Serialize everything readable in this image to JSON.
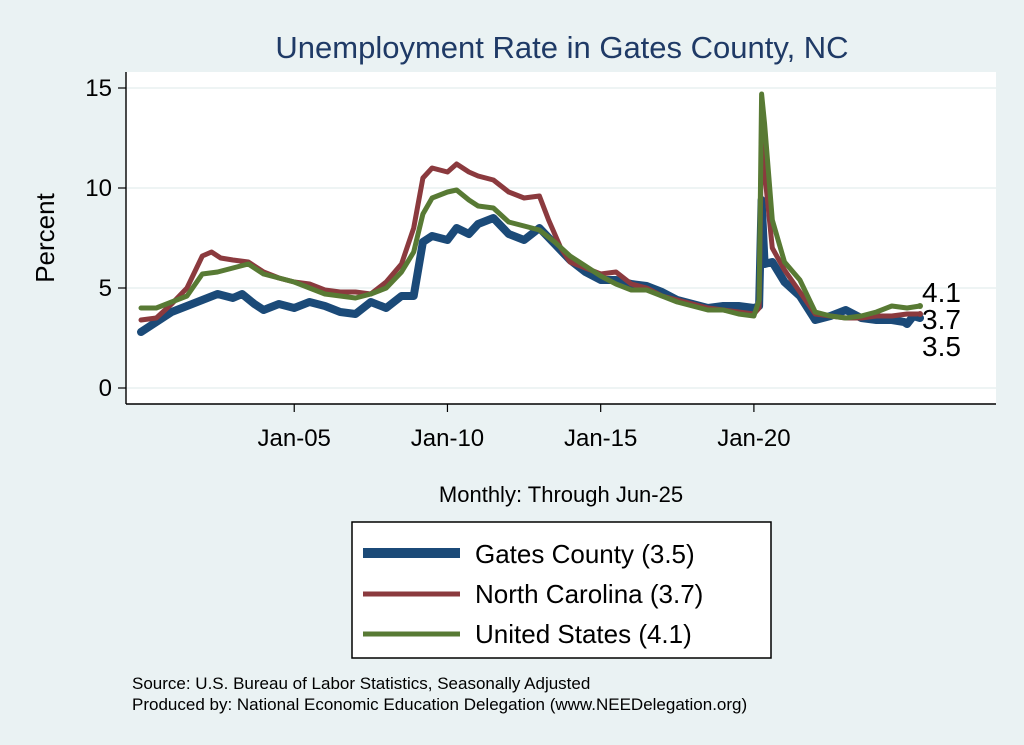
{
  "chart_data": {
    "type": "line",
    "title": "Unemployment Rate in Gates  County, NC",
    "ylabel": "Percent",
    "xlabel": "Monthly: Through Jun-25",
    "ylim": [
      0,
      15
    ],
    "yticks": [
      0,
      5,
      10,
      15
    ],
    "xrange": [
      2000.0,
      2025.42
    ],
    "xticks": [
      {
        "x": 2005.0,
        "label": "Jan-05"
      },
      {
        "x": 2010.0,
        "label": "Jan-10"
      },
      {
        "x": 2015.0,
        "label": "Jan-15"
      },
      {
        "x": 2020.0,
        "label": "Jan-20"
      }
    ],
    "series": [
      {
        "name": "Gates  County",
        "legend_label": "Gates  County (3.5)",
        "end_label": "3.5",
        "color": "#1b4a78",
        "points": [
          [
            2000.0,
            2.8
          ],
          [
            2000.5,
            3.3
          ],
          [
            2001.0,
            3.8
          ],
          [
            2001.5,
            4.1
          ],
          [
            2002.0,
            4.4
          ],
          [
            2002.5,
            4.7
          ],
          [
            2003.0,
            4.5
          ],
          [
            2003.3,
            4.7
          ],
          [
            2003.7,
            4.2
          ],
          [
            2004.0,
            3.9
          ],
          [
            2004.5,
            4.2
          ],
          [
            2005.0,
            4.0
          ],
          [
            2005.5,
            4.3
          ],
          [
            2006.0,
            4.1
          ],
          [
            2006.5,
            3.8
          ],
          [
            2007.0,
            3.7
          ],
          [
            2007.5,
            4.3
          ],
          [
            2008.0,
            4.0
          ],
          [
            2008.5,
            4.6
          ],
          [
            2008.9,
            4.6
          ],
          [
            2009.2,
            7.3
          ],
          [
            2009.5,
            7.6
          ],
          [
            2010.0,
            7.4
          ],
          [
            2010.3,
            8.0
          ],
          [
            2010.7,
            7.7
          ],
          [
            2011.0,
            8.2
          ],
          [
            2011.5,
            8.5
          ],
          [
            2012.0,
            7.7
          ],
          [
            2012.5,
            7.4
          ],
          [
            2013.0,
            8.0
          ],
          [
            2013.5,
            7.2
          ],
          [
            2014.0,
            6.4
          ],
          [
            2014.5,
            5.8
          ],
          [
            2015.0,
            5.4
          ],
          [
            2015.5,
            5.4
          ],
          [
            2016.0,
            5.2
          ],
          [
            2016.5,
            5.1
          ],
          [
            2017.0,
            4.8
          ],
          [
            2017.5,
            4.4
          ],
          [
            2018.0,
            4.2
          ],
          [
            2018.5,
            4.0
          ],
          [
            2019.0,
            4.1
          ],
          [
            2019.5,
            4.1
          ],
          [
            2020.0,
            4.0
          ],
          [
            2020.17,
            4.1
          ],
          [
            2020.25,
            9.4
          ],
          [
            2020.35,
            6.2
          ],
          [
            2020.6,
            6.3
          ],
          [
            2021.0,
            5.3
          ],
          [
            2021.5,
            4.6
          ],
          [
            2022.0,
            3.4
          ],
          [
            2022.5,
            3.6
          ],
          [
            2023.0,
            3.9
          ],
          [
            2023.5,
            3.5
          ],
          [
            2024.0,
            3.4
          ],
          [
            2024.5,
            3.4
          ],
          [
            2024.9,
            3.3
          ],
          [
            2025.0,
            3.2
          ],
          [
            2025.2,
            3.6
          ],
          [
            2025.42,
            3.5
          ]
        ]
      },
      {
        "name": "North Carolina",
        "legend_label": "North Carolina (3.7)",
        "end_label": "3.7",
        "color": "#8b3a3e",
        "points": [
          [
            2000.0,
            3.4
          ],
          [
            2000.5,
            3.5
          ],
          [
            2001.0,
            4.2
          ],
          [
            2001.5,
            5.0
          ],
          [
            2002.0,
            6.6
          ],
          [
            2002.3,
            6.8
          ],
          [
            2002.6,
            6.5
          ],
          [
            2003.0,
            6.4
          ],
          [
            2003.5,
            6.3
          ],
          [
            2004.0,
            5.8
          ],
          [
            2004.5,
            5.5
          ],
          [
            2005.0,
            5.3
          ],
          [
            2005.5,
            5.2
          ],
          [
            2006.0,
            4.9
          ],
          [
            2006.5,
            4.8
          ],
          [
            2007.0,
            4.8
          ],
          [
            2007.5,
            4.7
          ],
          [
            2008.0,
            5.3
          ],
          [
            2008.5,
            6.2
          ],
          [
            2008.9,
            8.0
          ],
          [
            2009.2,
            10.5
          ],
          [
            2009.5,
            11.0
          ],
          [
            2010.0,
            10.8
          ],
          [
            2010.3,
            11.2
          ],
          [
            2010.7,
            10.8
          ],
          [
            2011.0,
            10.6
          ],
          [
            2011.5,
            10.4
          ],
          [
            2012.0,
            9.8
          ],
          [
            2012.5,
            9.5
          ],
          [
            2013.0,
            9.6
          ],
          [
            2013.3,
            8.4
          ],
          [
            2013.7,
            7.0
          ],
          [
            2014.0,
            6.3
          ],
          [
            2014.5,
            6.0
          ],
          [
            2015.0,
            5.7
          ],
          [
            2015.5,
            5.8
          ],
          [
            2016.0,
            5.2
          ],
          [
            2016.5,
            5.0
          ],
          [
            2017.0,
            4.6
          ],
          [
            2017.5,
            4.4
          ],
          [
            2018.0,
            4.2
          ],
          [
            2018.5,
            4.0
          ],
          [
            2019.0,
            3.9
          ],
          [
            2019.5,
            3.8
          ],
          [
            2020.0,
            3.7
          ],
          [
            2020.17,
            4.0
          ],
          [
            2020.25,
            12.9
          ],
          [
            2020.35,
            10.8
          ],
          [
            2020.6,
            7.0
          ],
          [
            2021.0,
            5.9
          ],
          [
            2021.5,
            4.8
          ],
          [
            2022.0,
            3.7
          ],
          [
            2022.5,
            3.6
          ],
          [
            2023.0,
            3.5
          ],
          [
            2023.5,
            3.5
          ],
          [
            2024.0,
            3.6
          ],
          [
            2024.5,
            3.6
          ],
          [
            2025.0,
            3.7
          ],
          [
            2025.42,
            3.7
          ]
        ]
      },
      {
        "name": "United States",
        "legend_label": "United States (4.1)",
        "end_label": "4.1",
        "color": "#587a34",
        "points": [
          [
            2000.0,
            4.0
          ],
          [
            2000.5,
            4.0
          ],
          [
            2001.0,
            4.3
          ],
          [
            2001.5,
            4.6
          ],
          [
            2002.0,
            5.7
          ],
          [
            2002.5,
            5.8
          ],
          [
            2003.0,
            6.0
          ],
          [
            2003.5,
            6.2
          ],
          [
            2004.0,
            5.7
          ],
          [
            2004.5,
            5.5
          ],
          [
            2005.0,
            5.3
          ],
          [
            2005.5,
            5.0
          ],
          [
            2006.0,
            4.7
          ],
          [
            2006.5,
            4.6
          ],
          [
            2007.0,
            4.5
          ],
          [
            2007.5,
            4.7
          ],
          [
            2008.0,
            5.0
          ],
          [
            2008.5,
            5.8
          ],
          [
            2008.9,
            6.8
          ],
          [
            2009.2,
            8.7
          ],
          [
            2009.5,
            9.5
          ],
          [
            2010.0,
            9.8
          ],
          [
            2010.3,
            9.9
          ],
          [
            2010.7,
            9.4
          ],
          [
            2011.0,
            9.1
          ],
          [
            2011.5,
            9.0
          ],
          [
            2012.0,
            8.3
          ],
          [
            2012.5,
            8.1
          ],
          [
            2013.0,
            7.9
          ],
          [
            2013.5,
            7.3
          ],
          [
            2014.0,
            6.6
          ],
          [
            2014.5,
            6.1
          ],
          [
            2015.0,
            5.6
          ],
          [
            2015.5,
            5.2
          ],
          [
            2016.0,
            4.9
          ],
          [
            2016.5,
            4.9
          ],
          [
            2017.0,
            4.6
          ],
          [
            2017.5,
            4.3
          ],
          [
            2018.0,
            4.1
          ],
          [
            2018.5,
            3.9
          ],
          [
            2019.0,
            3.9
          ],
          [
            2019.5,
            3.7
          ],
          [
            2020.0,
            3.6
          ],
          [
            2020.17,
            4.4
          ],
          [
            2020.25,
            14.7
          ],
          [
            2020.35,
            13.2
          ],
          [
            2020.6,
            8.4
          ],
          [
            2021.0,
            6.3
          ],
          [
            2021.5,
            5.4
          ],
          [
            2022.0,
            3.8
          ],
          [
            2022.5,
            3.6
          ],
          [
            2023.0,
            3.5
          ],
          [
            2023.5,
            3.6
          ],
          [
            2024.0,
            3.8
          ],
          [
            2024.5,
            4.1
          ],
          [
            2025.0,
            4.0
          ],
          [
            2025.42,
            4.1
          ]
        ]
      }
    ]
  },
  "notes": {
    "source": "Source: U.S. Bureau of Labor Statistics, Seasonally Adjusted",
    "produced_by": "Produced by: National Economic Education Delegation (www.NEEDelegation.org)"
  }
}
